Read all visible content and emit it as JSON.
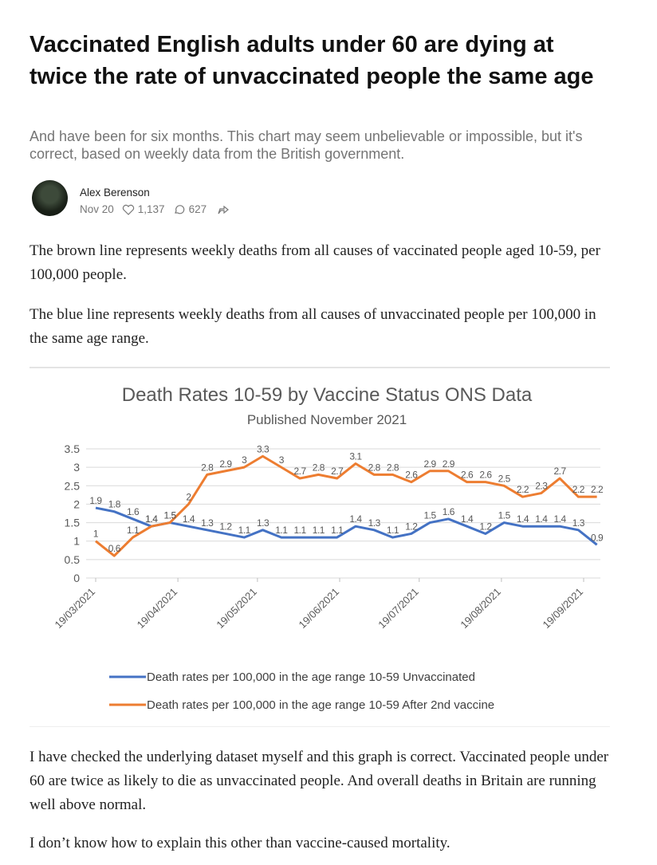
{
  "article": {
    "title": "Vaccinated English adults under 60 are dying at twice the rate of unvaccinated people the same age",
    "subtitle": "And have been for six months. This chart may seem unbelievable or impossible, but it's correct, based on weekly data from the British government.",
    "author": "Alex Berenson",
    "date": "Nov 20",
    "likes": "1,137",
    "comments": "627",
    "paragraphs_before": [
      "The brown line represents weekly deaths from all causes of vaccinated people aged 10-59, per 100,000 people.",
      "The blue line represents weekly deaths from all causes of unvaccinated people per 100,000 in the same age range."
    ],
    "paragraphs_after": [
      "I have checked the underlying dataset myself and this graph is correct. Vaccinated people under 60 are twice as likely to die as unvaccinated people. And overall deaths in Britain are running well above normal.",
      "I don’t know how to explain this other than vaccine-caused mortality."
    ]
  },
  "chart": {
    "type": "line",
    "title": "Death Rates 10-59  by Vaccine Status ONS Data",
    "subtitle": "Published November 2021",
    "xticks": [
      "19/03/2021",
      "19/04/2021",
      "19/05/2021",
      "19/06/2021",
      "19/07/2021",
      "19/08/2021",
      "19/09/2021"
    ],
    "ylim": [
      0,
      3.5
    ],
    "yticks": [
      0,
      0.5,
      1,
      1.5,
      2,
      2.5,
      3,
      3.5
    ],
    "grid": true,
    "legend": "bottom",
    "series": [
      {
        "name": "Death rates per 100,000 in the age range 10-59 Unvaccinated",
        "color": "#4472c4",
        "values": [
          1.9,
          1.8,
          1.6,
          1.4,
          1.5,
          1.4,
          1.3,
          1.2,
          1.1,
          1.3,
          1.1,
          1.1,
          1.1,
          1.1,
          1.4,
          1.3,
          1.1,
          1.2,
          1.5,
          1.6,
          1.4,
          1.2,
          1.5,
          1.4,
          1.4,
          1.4,
          1.3,
          0.9
        ]
      },
      {
        "name": "Death rates per 100,000 in the age range 10-59 After 2nd  vaccine",
        "color": "#ed7d31",
        "values": [
          1,
          0.6,
          1.1,
          1.4,
          1.5,
          2,
          2.8,
          2.9,
          3,
          3.3,
          3,
          2.7,
          2.8,
          2.7,
          3.1,
          2.8,
          2.8,
          2.6,
          2.9,
          2.9,
          2.6,
          2.6,
          2.5,
          2.2,
          2.3,
          2.7,
          2.2,
          2.2
        ]
      }
    ]
  }
}
